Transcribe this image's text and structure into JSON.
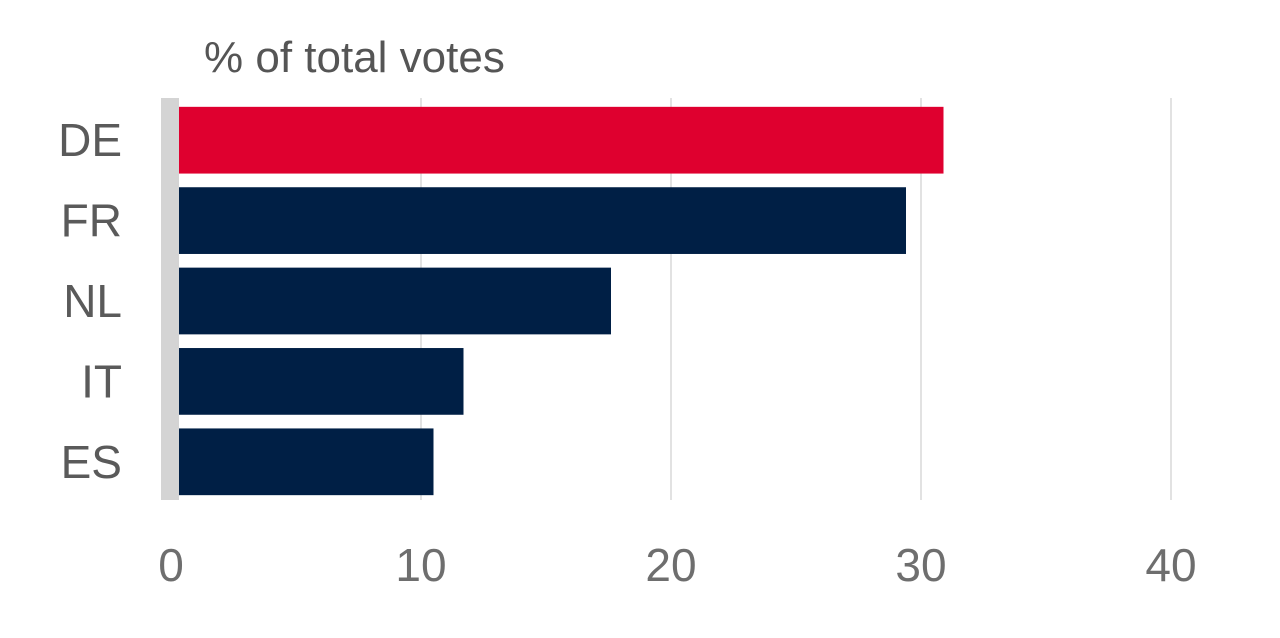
{
  "chart_data": {
    "type": "bar",
    "orientation": "horizontal",
    "title": "% of total votes",
    "xlabel": "",
    "ylabel": "",
    "categories": [
      "DE",
      "FR",
      "NL",
      "IT",
      "ES"
    ],
    "values": [
      30.9,
      29.4,
      17.6,
      11.7,
      10.5
    ],
    "highlight_category": "DE",
    "xlim": [
      0,
      40
    ],
    "xticks": [
      0,
      10,
      20,
      30,
      40
    ],
    "grid": true,
    "colors": {
      "highlight": "#df002f",
      "bar": "#001f45",
      "grid": "#d9d9d9",
      "axis": "#d4d4d4"
    }
  }
}
